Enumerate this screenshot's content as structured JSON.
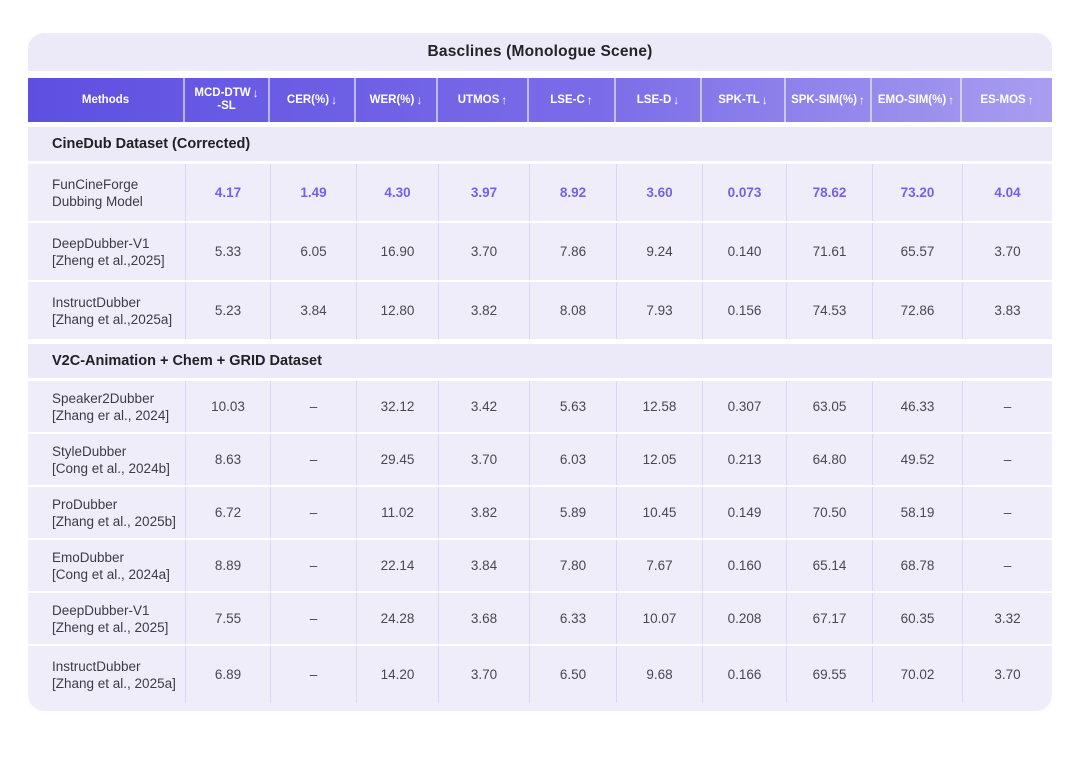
{
  "colors": {
    "header_gradient_left": "#5d50e1",
    "header_gradient_right": "#a89df0",
    "highlight_value_text": "#7163e8",
    "band_background": "#ece9f8",
    "row_background": "#f0edfb",
    "body_text": "#48484f"
  },
  "chart_data": {
    "type": "table",
    "title": "Basclines (Monologue Scene)",
    "columns": [
      {
        "label": "Methods",
        "sub": "",
        "arrow": ""
      },
      {
        "label": "MCD-DTW",
        "sub": "-SL",
        "arrow": "↓"
      },
      {
        "label": "CER(%)",
        "sub": "",
        "arrow": "↓"
      },
      {
        "label": "WER(%)",
        "sub": "",
        "arrow": "↓"
      },
      {
        "label": "UTMOS",
        "sub": "",
        "arrow": "↑"
      },
      {
        "label": "LSE-C",
        "sub": "",
        "arrow": "↑"
      },
      {
        "label": "LSE-D",
        "sub": "",
        "arrow": "↓"
      },
      {
        "label": "SPK-TL",
        "sub": "",
        "arrow": "↓"
      },
      {
        "label": "SPK-SIM(%)",
        "sub": "",
        "arrow": "↑"
      },
      {
        "label": "EMO-SIM(%)",
        "sub": "",
        "arrow": "↑"
      },
      {
        "label": "ES-MOS",
        "sub": "",
        "arrow": "↑"
      }
    ],
    "sections": [
      {
        "header": "CineDub Dataset (Corrected)",
        "rows": [
          {
            "method": "FunCineForge",
            "citation": "Dubbing Model",
            "highlight": true,
            "values": [
              "4.17",
              "1.49",
              "4.30",
              "3.97",
              "8.92",
              "3.60",
              "0.073",
              "78.62",
              "73.20",
              "4.04"
            ]
          },
          {
            "method": "DeepDubber-V1",
            "citation": "[Zheng et al.,2025]",
            "highlight": false,
            "values": [
              "5.33",
              "6.05",
              "16.90",
              "3.70",
              "7.86",
              "9.24",
              "0.140",
              "71.61",
              "65.57",
              "3.70"
            ]
          },
          {
            "method": "InstructDubber",
            "citation": "[Zhang et al.,2025a]",
            "highlight": false,
            "values": [
              "5.23",
              "3.84",
              "12.80",
              "3.82",
              "8.08",
              "7.93",
              "0.156",
              "74.53",
              "72.86",
              "3.83"
            ]
          }
        ]
      },
      {
        "header": "V2C-Animation + Chem + GRID Dataset",
        "rows": [
          {
            "method": "Speaker2Dubber",
            "citation": "[Zhang er al., 2024]",
            "highlight": false,
            "values": [
              "10.03",
              "–",
              "32.12",
              "3.42",
              "5.63",
              "12.58",
              "0.307",
              "63.05",
              "46.33",
              "–"
            ]
          },
          {
            "method": "StyleDubber",
            "citation": "[Cong et al., 2024b]",
            "highlight": false,
            "values": [
              "8.63",
              "–",
              "29.45",
              "3.70",
              "6.03",
              "12.05",
              "0.213",
              "64.80",
              "49.52",
              "–"
            ]
          },
          {
            "method": "ProDubber",
            "citation": "[Zhang et al., 2025b]",
            "highlight": false,
            "values": [
              "6.72",
              "–",
              "11.02",
              "3.82",
              "5.89",
              "10.45",
              "0.149",
              "70.50",
              "58.19",
              "–"
            ]
          },
          {
            "method": "EmoDubber",
            "citation": "[Cong et al., 2024a]",
            "highlight": false,
            "values": [
              "8.89",
              "–",
              "22.14",
              "3.84",
              "7.80",
              "7.67",
              "0.160",
              "65.14",
              "68.78",
              "–"
            ]
          },
          {
            "method": "DeepDubber-V1",
            "citation": "[Zheng et al., 2025]",
            "highlight": false,
            "values": [
              "7.55",
              "–",
              "24.28",
              "3.68",
              "6.33",
              "10.07",
              "0.208",
              "67.17",
              "60.35",
              "3.32"
            ]
          },
          {
            "method": "InstructDubber",
            "citation": "[Zhang et al., 2025a]",
            "highlight": false,
            "values": [
              "6.89",
              "–",
              "14.20",
              "3.70",
              "6.50",
              "9.68",
              "0.166",
              "69.55",
              "70.02",
              "3.70"
            ]
          }
        ]
      }
    ]
  }
}
